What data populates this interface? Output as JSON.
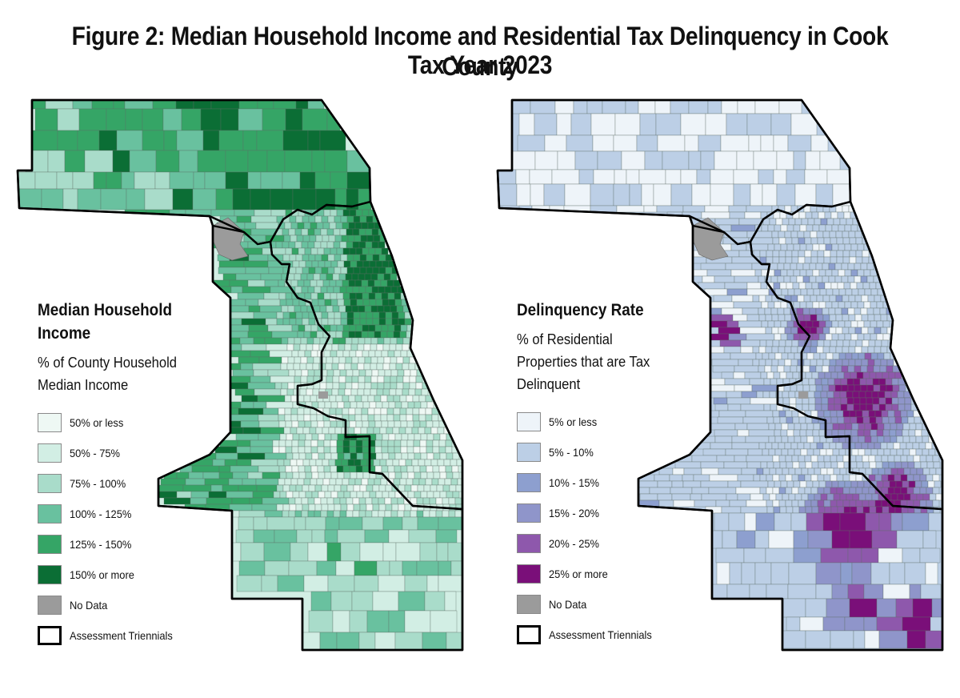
{
  "title_line1": "Figure 2: Median Household Income and Residential Tax Delinquency in Cook County",
  "title_line2": "Tax Year 2023",
  "maps": [
    {
      "id": "income",
      "legend_title": "Median Household Income",
      "legend_title_lines": [
        "Median Household",
        "Income"
      ],
      "legend_subtitle_lines": [
        "% of County Household",
        "Median Income"
      ],
      "items": [
        {
          "label": "50% or less",
          "color": "#eef8f4"
        },
        {
          "label": "50% - 75%",
          "color": "#d2eee4"
        },
        {
          "label": "75% - 100%",
          "color": "#a9dcca"
        },
        {
          "label": "100% - 125%",
          "color": "#69c19f"
        },
        {
          "label": "125% - 150%",
          "color": "#35a566"
        },
        {
          "label": "150% or more",
          "color": "#0b6e35"
        },
        {
          "label": "No Data",
          "color": "#9b9b9b"
        },
        {
          "label": "Assessment Triennials",
          "color": "outline"
        }
      ]
    },
    {
      "id": "delinquency",
      "legend_title": "Delinquency Rate",
      "legend_title_lines": [
        "Delinquency Rate"
      ],
      "legend_subtitle_lines": [
        "% of Residential",
        "Properties that are Tax",
        "Delinquent"
      ],
      "items": [
        {
          "label": "5% or less",
          "color": "#eef4f9"
        },
        {
          "label": "5% - 10%",
          "color": "#bccfe6"
        },
        {
          "label": "10% - 15%",
          "color": "#8d9fcf"
        },
        {
          "label": "15% - 20%",
          "color": "#8f95ca"
        },
        {
          "label": "20% - 25%",
          "color": "#8e58ac"
        },
        {
          "label": "25% or more",
          "color": "#7a0f79"
        },
        {
          "label": "No Data",
          "color": "#9b9b9b"
        },
        {
          "label": "Assessment Triennials",
          "color": "outline"
        }
      ]
    }
  ]
}
